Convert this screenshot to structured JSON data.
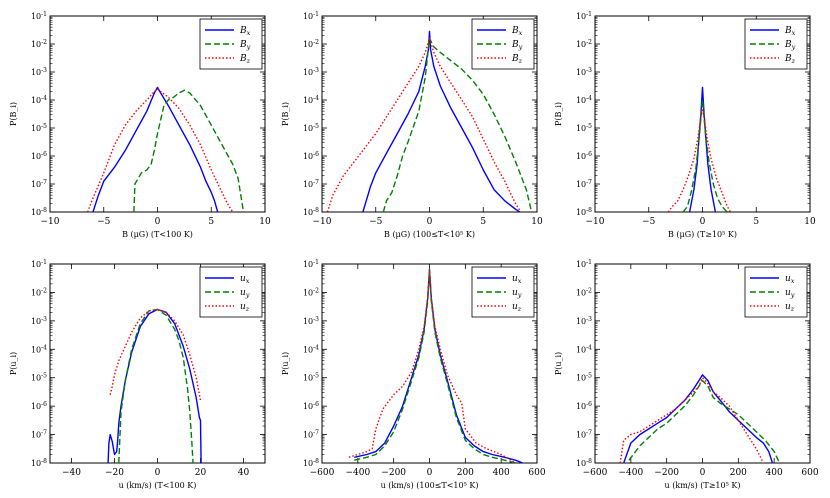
{
  "colors": {
    "x": "#0000ff",
    "y": "#008000",
    "z": "#ff0000"
  },
  "chart_data": [
    {
      "type": "line",
      "title": "",
      "xlabel": "B (μG)  (T<100 K)",
      "ylabel": "P(B_i)",
      "xlim": [
        -10,
        10
      ],
      "xticks": [
        -10,
        -5,
        0,
        5,
        10
      ],
      "ylim_exp": [
        -8,
        -1
      ],
      "yscale": "log",
      "legend_position": "top-right",
      "series": [
        {
          "name": "B_x",
          "key": "x",
          "style": "solid",
          "x": [
            -6,
            -5.5,
            -5,
            -4,
            -3,
            -2,
            -1,
            -0.3,
            0,
            0.3,
            1,
            2,
            3,
            4,
            4.5,
            5,
            5.3,
            5.6
          ],
          "log10y": [
            -8,
            -7.4,
            -6.9,
            -6.4,
            -5.8,
            -5.1,
            -4.4,
            -3.75,
            -3.55,
            -3.75,
            -4.2,
            -4.9,
            -5.6,
            -6.4,
            -6.9,
            -7.3,
            -7.6,
            -8
          ]
        },
        {
          "name": "B_y",
          "key": "y",
          "style": "dash",
          "x": [
            -2.2,
            -2.1,
            -1.5,
            -1,
            -0.6,
            -0.3,
            0,
            0.3,
            0.6,
            1,
            1.5,
            2,
            2.5,
            3,
            4,
            5,
            6,
            7,
            7.5,
            8
          ],
          "log10y": [
            -8,
            -7,
            -6.6,
            -6.5,
            -6.3,
            -5.8,
            -5.2,
            -4.7,
            -4.2,
            -4.0,
            -3.9,
            -3.75,
            -3.65,
            -3.75,
            -4.2,
            -4.9,
            -5.6,
            -6.3,
            -6.8,
            -8
          ]
        },
        {
          "name": "B_z",
          "key": "z",
          "style": "dot",
          "x": [
            -6.5,
            -6,
            -5,
            -4,
            -3,
            -2,
            -1,
            -0.3,
            0,
            0.3,
            1,
            2,
            3,
            4,
            5,
            6,
            6.5,
            7
          ],
          "log10y": [
            -8,
            -7.5,
            -6.6,
            -5.6,
            -4.9,
            -4.4,
            -4.0,
            -3.7,
            -3.6,
            -3.7,
            -3.9,
            -4.3,
            -4.9,
            -5.6,
            -6.5,
            -7.3,
            -7.7,
            -8
          ]
        }
      ]
    },
    {
      "type": "line",
      "title": "",
      "xlabel": "B (μG)  (100≤T<10⁵ K)",
      "ylabel": "P(B_i)",
      "xlim": [
        -10,
        10
      ],
      "xticks": [
        -10,
        -5,
        0,
        5,
        10
      ],
      "ylim_exp": [
        -8,
        -1
      ],
      "yscale": "log",
      "legend_position": "top-right",
      "series": [
        {
          "name": "B_x",
          "key": "x",
          "style": "solid",
          "x": [
            -6.2,
            -5.5,
            -5,
            -4,
            -3,
            -2,
            -1,
            -0.4,
            -0.1,
            0,
            0.1,
            0.4,
            1,
            2,
            3,
            4,
            5,
            6,
            7,
            8,
            8.4
          ],
          "log10y": [
            -8,
            -7.1,
            -6.6,
            -5.9,
            -5.2,
            -4.5,
            -3.7,
            -2.8,
            -2.2,
            -1.55,
            -2.2,
            -2.8,
            -3.5,
            -4.3,
            -5.0,
            -5.7,
            -6.5,
            -7.2,
            -7.6,
            -7.9,
            -8
          ]
        },
        {
          "name": "B_y",
          "key": "y",
          "style": "dash",
          "x": [
            -4.3,
            -4,
            -3.5,
            -3,
            -2.5,
            -2,
            -1,
            -0.4,
            0,
            0.4,
            1,
            2,
            3,
            4,
            5,
            6,
            7,
            8,
            9,
            9.5
          ],
          "log10y": [
            -8,
            -7.6,
            -7.3,
            -6.7,
            -6.0,
            -5.5,
            -4.4,
            -3.2,
            -1.8,
            -2.1,
            -2.3,
            -2.6,
            -2.9,
            -3.3,
            -3.8,
            -4.5,
            -5.3,
            -6.2,
            -7.2,
            -8
          ]
        },
        {
          "name": "B_z",
          "key": "z",
          "style": "dot",
          "x": [
            -9.5,
            -9,
            -8,
            -7,
            -6,
            -5,
            -4,
            -3,
            -2,
            -1,
            -0.4,
            0,
            0.4,
            1,
            2,
            3,
            4,
            5,
            6,
            7,
            7.5,
            8,
            8.5
          ],
          "log10y": [
            -8,
            -7.4,
            -6.7,
            -6.2,
            -5.7,
            -5.2,
            -4.6,
            -4.0,
            -3.4,
            -2.8,
            -2.3,
            -1.8,
            -2.3,
            -2.8,
            -3.4,
            -4.0,
            -4.6,
            -5.4,
            -6.2,
            -6.9,
            -7.3,
            -7.7,
            -8
          ]
        }
      ]
    },
    {
      "type": "line",
      "title": "",
      "xlabel": "B (μG)  (T≥10⁵ K)",
      "ylabel": "P(B_i)",
      "xlim": [
        -10,
        10
      ],
      "xticks": [
        -10,
        -5,
        0,
        5,
        10
      ],
      "ylim_exp": [
        -8,
        -1
      ],
      "yscale": "log",
      "legend_position": "top-right",
      "series": [
        {
          "name": "B_x",
          "key": "x",
          "style": "solid",
          "x": [
            -1.2,
            -0.8,
            -0.5,
            -0.3,
            -0.15,
            0,
            0.15,
            0.3,
            0.5,
            0.8,
            1.2
          ],
          "log10y": [
            -8,
            -7.2,
            -6.3,
            -5.2,
            -4.5,
            -3.55,
            -4.5,
            -5.3,
            -6.3,
            -7.2,
            -8
          ]
        },
        {
          "name": "B_y",
          "key": "y",
          "style": "dash",
          "x": [
            -1.8,
            -1.4,
            -1,
            -0.6,
            -0.3,
            0,
            0.3,
            0.6,
            1,
            1.4,
            1.8,
            2.3
          ],
          "log10y": [
            -8,
            -7.8,
            -7.2,
            -6.4,
            -5.3,
            -4.0,
            -5.3,
            -6.2,
            -7.0,
            -7.5,
            -7.8,
            -8
          ]
        },
        {
          "name": "B_z",
          "key": "z",
          "style": "dot",
          "x": [
            -3.2,
            -2.8,
            -2.3,
            -1.8,
            -1.3,
            -0.8,
            -0.4,
            -0.15,
            0,
            0.15,
            0.4,
            0.8,
            1.3,
            1.8,
            2.3,
            2.6
          ],
          "log10y": [
            -8,
            -7.8,
            -7.6,
            -7.2,
            -6.7,
            -6.1,
            -5.3,
            -4.6,
            -4.3,
            -4.6,
            -5.3,
            -6.1,
            -6.8,
            -7.3,
            -7.8,
            -8
          ]
        }
      ]
    },
    {
      "type": "line",
      "title": "",
      "xlabel": "u (km/s)  (T<100 K)",
      "ylabel": "P(u_i)",
      "xlim": [
        -50,
        50
      ],
      "xticks": [
        -40,
        -20,
        0,
        20,
        40
      ],
      "ylim_exp": [
        -8,
        -1
      ],
      "yscale": "log",
      "legend_position": "top-right",
      "series": [
        {
          "name": "u_x",
          "key": "x",
          "style": "solid",
          "x": [
            -23,
            -22.6,
            -22,
            -21,
            -20,
            -19,
            -18.5,
            -18,
            -17,
            -15,
            -12,
            -8,
            -4,
            0,
            4,
            8,
            12,
            15,
            18,
            19.5,
            20,
            20.3
          ],
          "log10y": [
            -8,
            -7.3,
            -7.0,
            -7.25,
            -7.7,
            -7.6,
            -7.2,
            -6.6,
            -6.0,
            -5.1,
            -4.1,
            -3.2,
            -2.75,
            -2.6,
            -2.7,
            -3.1,
            -3.9,
            -4.7,
            -5.7,
            -6.4,
            -6.5,
            -8
          ]
        },
        {
          "name": "u_y",
          "key": "y",
          "style": "dash",
          "x": [
            -18,
            -17,
            -15,
            -12,
            -8,
            -4,
            0,
            4,
            8,
            10,
            12,
            14,
            15,
            16,
            16.5
          ],
          "log10y": [
            -8,
            -6.2,
            -5.1,
            -4.0,
            -3.1,
            -2.65,
            -2.6,
            -2.8,
            -3.3,
            -3.7,
            -4.3,
            -5.4,
            -6.2,
            -7.3,
            -8
          ]
        },
        {
          "name": "u_z",
          "key": "z",
          "style": "dot",
          "x": [
            -22,
            -21,
            -20,
            -18,
            -15,
            -12,
            -8,
            -4,
            0,
            4,
            8,
            12,
            15,
            18,
            19.5,
            20
          ],
          "log10y": [
            -5.6,
            -5.3,
            -4.9,
            -4.4,
            -3.9,
            -3.4,
            -2.9,
            -2.65,
            -2.6,
            -2.7,
            -3.0,
            -3.5,
            -4.2,
            -5.0,
            -5.6,
            -5.8
          ]
        }
      ]
    },
    {
      "type": "line",
      "title": "",
      "xlabel": "u (km/s)  (100≤T<10⁵ K)",
      "ylabel": "P(u_i)",
      "xlim": [
        -600,
        600
      ],
      "xticks": [
        -600,
        -400,
        -200,
        0,
        200,
        400,
        600
      ],
      "ylim_exp": [
        -8,
        -1
      ],
      "yscale": "log",
      "legend_position": "top-right",
      "series": [
        {
          "name": "u_x",
          "key": "x",
          "style": "solid",
          "x": [
            -420,
            -350,
            -300,
            -250,
            -200,
            -150,
            -100,
            -60,
            -30,
            -10,
            0,
            10,
            30,
            60,
            100,
            150,
            200,
            250,
            300,
            350,
            420,
            480,
            520
          ],
          "log10y": [
            -7.8,
            -7.7,
            -7.6,
            -7.3,
            -6.7,
            -6.0,
            -5.0,
            -4.2,
            -3.3,
            -2.2,
            -1.2,
            -2.2,
            -3.3,
            -4.2,
            -5.1,
            -6.3,
            -7.1,
            -7.4,
            -7.6,
            -7.7,
            -7.8,
            -7.9,
            -8
          ]
        },
        {
          "name": "u_y",
          "key": "y",
          "style": "dash",
          "x": [
            -420,
            -350,
            -300,
            -250,
            -200,
            -150,
            -100,
            -60,
            -30,
            -10,
            0,
            10,
            30,
            60,
            100,
            150,
            200,
            250,
            300,
            350,
            420,
            480
          ],
          "log10y": [
            -7.9,
            -7.8,
            -7.7,
            -7.4,
            -6.9,
            -6.1,
            -5.1,
            -4.3,
            -3.4,
            -2.3,
            -1.25,
            -2.3,
            -3.4,
            -4.3,
            -5.2,
            -6.4,
            -7.2,
            -7.5,
            -7.7,
            -7.8,
            -7.9,
            -8
          ]
        },
        {
          "name": "u_z",
          "key": "z",
          "style": "dot",
          "x": [
            -450,
            -400,
            -350,
            -320,
            -300,
            -260,
            -200,
            -150,
            -100,
            -60,
            -30,
            -10,
            0,
            10,
            30,
            60,
            100,
            150,
            180,
            200,
            260,
            320,
            400,
            480
          ],
          "log10y": [
            -7.8,
            -7.7,
            -7.6,
            -7.5,
            -6.8,
            -6.1,
            -5.6,
            -5.3,
            -4.8,
            -4.0,
            -3.2,
            -2.2,
            -1.2,
            -2.2,
            -3.2,
            -4.0,
            -4.9,
            -5.6,
            -5.9,
            -6.8,
            -7.3,
            -7.5,
            -7.7,
            -8
          ]
        }
      ]
    },
    {
      "type": "line",
      "title": "",
      "xlabel": "u (km/s)  (T≥10⁵ K)",
      "ylabel": "P(u_i)",
      "xlim": [
        -600,
        600
      ],
      "xticks": [
        -600,
        -400,
        -200,
        0,
        200,
        400,
        600
      ],
      "ylim_exp": [
        -8,
        -1
      ],
      "yscale": "log",
      "legend_position": "top-right",
      "series": [
        {
          "name": "u_x",
          "key": "x",
          "style": "solid",
          "x": [
            -440,
            -400,
            -350,
            -300,
            -250,
            -200,
            -150,
            -100,
            -50,
            -20,
            0,
            30,
            60,
            100,
            150,
            200,
            250,
            300,
            340,
            370,
            390
          ],
          "log10y": [
            -8,
            -7.3,
            -7.0,
            -6.8,
            -6.6,
            -6.4,
            -6.1,
            -5.8,
            -5.4,
            -5.1,
            -4.9,
            -5.1,
            -5.5,
            -5.8,
            -6.2,
            -6.5,
            -6.8,
            -7.1,
            -7.3,
            -7.6,
            -8
          ]
        },
        {
          "name": "u_y",
          "key": "y",
          "style": "dash",
          "x": [
            -410,
            -350,
            -300,
            -250,
            -200,
            -150,
            -100,
            -50,
            -20,
            0,
            30,
            60,
            100,
            150,
            200,
            250,
            300,
            350,
            400,
            430
          ],
          "log10y": [
            -7.9,
            -7.4,
            -7.1,
            -6.8,
            -6.6,
            -6.3,
            -6.0,
            -5.6,
            -5.3,
            -5.1,
            -5.3,
            -5.7,
            -5.9,
            -6.1,
            -6.3,
            -6.6,
            -6.9,
            -7.2,
            -7.6,
            -8
          ]
        },
        {
          "name": "u_z",
          "key": "z",
          "style": "dot",
          "x": [
            -460,
            -440,
            -400,
            -350,
            -300,
            -250,
            -200,
            -150,
            -100,
            -50,
            -20,
            0,
            30,
            60,
            100,
            150,
            200,
            250,
            300,
            340
          ],
          "log10y": [
            -8,
            -7.2,
            -7.0,
            -6.9,
            -6.7,
            -6.5,
            -6.3,
            -6.1,
            -5.8,
            -5.5,
            -5.3,
            -5.0,
            -5.2,
            -5.5,
            -5.7,
            -6.0,
            -6.5,
            -7.0,
            -7.5,
            -8
          ]
        }
      ]
    }
  ]
}
